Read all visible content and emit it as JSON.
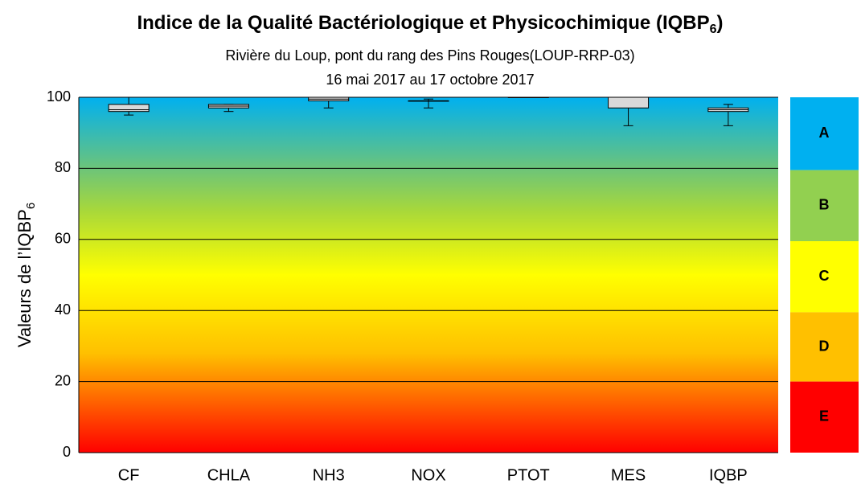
{
  "chart_data": {
    "type": "box",
    "title": {
      "text": "Indice de la Qualité Bactériologique et Physicochimique (IQBP",
      "subscript": "6",
      "suffix": ")"
    },
    "subtitle": [
      "Rivière du Loup, pont du rang des Pins Rouges(LOUP-RRP-03)",
      "16 mai 2017 au 17 octobre 2017"
    ],
    "y_label": {
      "text": "Valeurs de l’IQBP",
      "subscript": "6"
    },
    "categories": [
      "CF",
      "CHLA",
      "NH3",
      "NOX",
      "PTOT",
      "MES",
      "IQBP"
    ],
    "boxes": [
      {
        "min": 95,
        "q1": 96,
        "median": 96.5,
        "q3": 98,
        "max": 100
      },
      {
        "min": 96,
        "q1": 97,
        "median": 97.5,
        "q3": 98,
        "max": 98
      },
      {
        "min": 97,
        "q1": 99,
        "median": 99.5,
        "q3": 100,
        "max": 100
      },
      {
        "min": 97,
        "q1": 99,
        "median": 99,
        "q3": 99,
        "max": 99.5
      },
      {
        "min": 100,
        "q1": 100,
        "median": 100,
        "q3": 100,
        "max": 100
      },
      {
        "min": 92,
        "q1": 97,
        "median": 100,
        "q3": 100,
        "max": 100
      },
      {
        "min": 92,
        "q1": 96,
        "median": 96.5,
        "q3": 97,
        "max": 98
      }
    ],
    "box_color": "#d9d9d9",
    "ylim": [
      0,
      100
    ],
    "yticks": [
      0,
      20,
      40,
      60,
      80,
      100
    ],
    "grid": true,
    "classes": [
      {
        "label": "A",
        "color": "#00b0f0",
        "range": [
          79.5,
          100
        ]
      },
      {
        "label": "B",
        "color": "#92d050",
        "range": [
          59.5,
          79.5
        ]
      },
      {
        "label": "C",
        "color": "#ffff00",
        "range": [
          39.5,
          59.5
        ]
      },
      {
        "label": "D",
        "color": "#ffc000",
        "range": [
          20,
          39.5
        ]
      },
      {
        "label": "E",
        "color": "#ff0000",
        "range": [
          0,
          20
        ]
      }
    ]
  }
}
